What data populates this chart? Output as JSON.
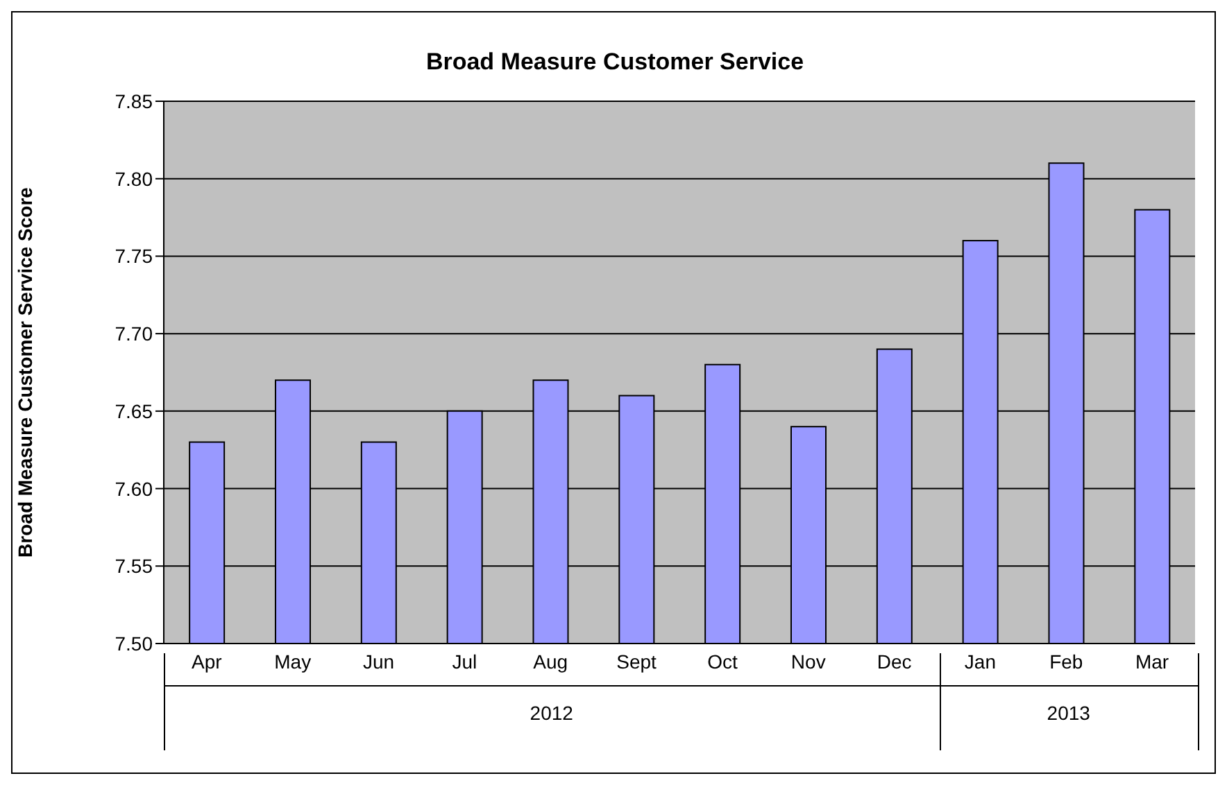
{
  "chart_data": {
    "type": "bar",
    "title": "Broad Measure Customer Service",
    "ylabel": "Broad Measure Customer Service Score",
    "categories": [
      "Apr",
      "May",
      "Jun",
      "Jul",
      "Aug",
      "Sept",
      "Oct",
      "Nov",
      "Dec",
      "Jan",
      "Feb",
      "Mar"
    ],
    "values": [
      7.63,
      7.67,
      7.63,
      7.65,
      7.67,
      7.66,
      7.68,
      7.64,
      7.69,
      7.76,
      7.81,
      7.78
    ],
    "color": "#9999ff",
    "ylim": [
      7.5,
      7.85
    ],
    "yticks": [
      {
        "value": 7.5,
        "label": "7.50"
      },
      7.55,
      {
        "value": 7.6,
        "label": "7.60"
      },
      7.65,
      {
        "value": 7.7,
        "label": "7.70"
      },
      7.75,
      {
        "value": 7.8,
        "label": "7.80"
      },
      7.85
    ],
    "grid": "y",
    "annotations": [
      "2012",
      "2013"
    ]
  }
}
